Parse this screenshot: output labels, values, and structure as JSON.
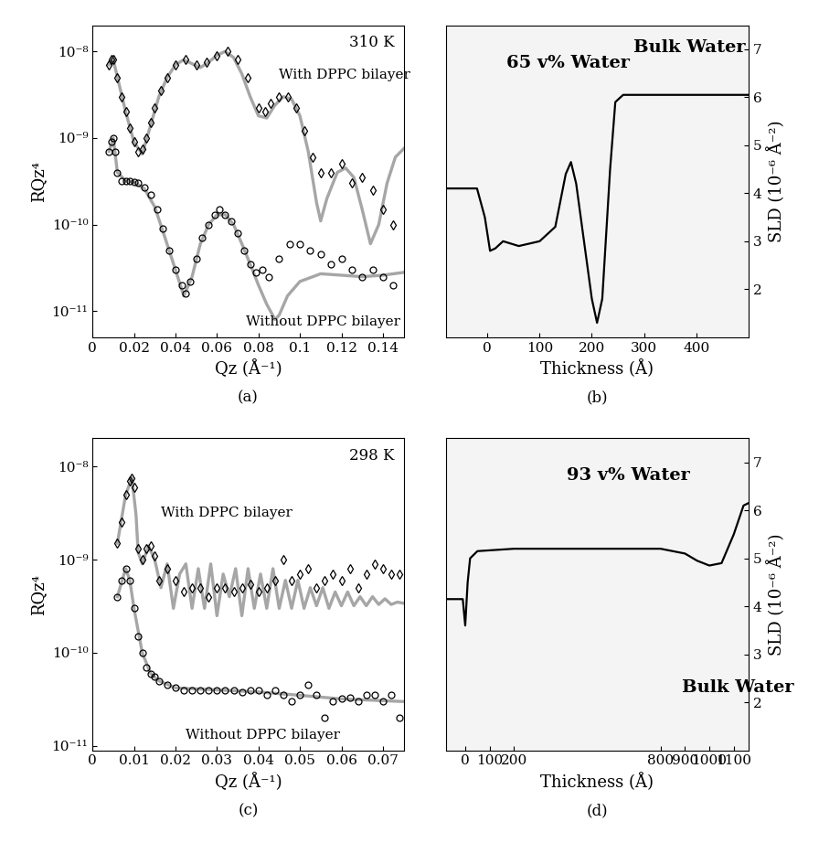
{
  "chart_data": [
    {
      "type": "scatter",
      "title": "(a)",
      "log": "y",
      "x_label": "Qz (Å⁻¹)",
      "y_label": "RQz⁴",
      "xlim": [
        0,
        0.15
      ],
      "ylim": [
        5e-12,
        2e-08
      ],
      "xticks": [
        0,
        0.02,
        0.04,
        0.06,
        0.08,
        0.1,
        0.12,
        0.14
      ],
      "yticks": [
        {
          "value": 1e-11,
          "label": "10⁻¹¹"
        },
        {
          "value": 1e-10,
          "label": "10⁻¹⁰"
        },
        {
          "value": 1e-09,
          "label": "10⁻⁹"
        },
        {
          "value": 1e-08,
          "label": "10⁻⁸"
        }
      ],
      "annotations": [
        {
          "text": "310 K"
        }
      ],
      "series": [
        {
          "name": "With DPPC bilayer",
          "type": "scatter",
          "marker": "diamond",
          "color": "#000000",
          "x": [
            0.008,
            0.009,
            0.01,
            0.012,
            0.014,
            0.016,
            0.018,
            0.02,
            0.022,
            0.024,
            0.026,
            0.028,
            0.03,
            0.033,
            0.036,
            0.04,
            0.045,
            0.05,
            0.055,
            0.06,
            0.065,
            0.07,
            0.075,
            0.08,
            0.083,
            0.086,
            0.09,
            0.094,
            0.098,
            0.102,
            0.106,
            0.11,
            0.115,
            0.12,
            0.125,
            0.13,
            0.135,
            0.14,
            0.145
          ],
          "values": [
            7e-09,
            8e-09,
            8e-09,
            5e-09,
            3e-09,
            2e-09,
            1.3e-09,
            9e-10,
            7e-10,
            7.5e-10,
            1e-09,
            1.5e-09,
            2.2e-09,
            3.5e-09,
            5e-09,
            7e-09,
            8e-09,
            7e-09,
            7.5e-09,
            9e-09,
            1e-08,
            8e-09,
            5e-09,
            2.2e-09,
            2e-09,
            2.5e-09,
            3e-09,
            3e-09,
            2.2e-09,
            1.2e-09,
            6e-10,
            4e-10,
            4e-10,
            5e-10,
            3e-10,
            3.5e-10,
            2.5e-10,
            1.5e-10,
            1e-10
          ]
        },
        {
          "type": "line",
          "line_style": "solid",
          "color": "#a6a6a6",
          "x": [
            0.008,
            0.01,
            0.013,
            0.016,
            0.02,
            0.024,
            0.028,
            0.032,
            0.036,
            0.04,
            0.044,
            0.048,
            0.052,
            0.056,
            0.06,
            0.064,
            0.068,
            0.072,
            0.076,
            0.08,
            0.084,
            0.088,
            0.092,
            0.096,
            0.1,
            0.104,
            0.108,
            0.11,
            0.113,
            0.118,
            0.122,
            0.126,
            0.13,
            0.134,
            0.138,
            0.142,
            0.146,
            0.15
          ],
          "values": [
            7e-09,
            8e-09,
            4e-09,
            2e-09,
            9e-10,
            6.5e-10,
            1.4e-09,
            3e-09,
            5e-09,
            7e-09,
            8e-09,
            7.2e-09,
            6.5e-09,
            7.5e-09,
            9e-09,
            1e-08,
            8.5e-09,
            5.5e-09,
            3e-09,
            1.8e-09,
            1.7e-09,
            2.4e-09,
            3e-09,
            2.8e-09,
            1.8e-09,
            7e-10,
            1.8e-10,
            1.1e-10,
            2e-10,
            4e-10,
            4.5e-10,
            3.5e-10,
            1.5e-10,
            6e-11,
            1e-10,
            3e-10,
            6e-10,
            7.5e-10
          ]
        },
        {
          "name": "Without DPPC bilayer",
          "type": "scatter",
          "marker": "circle",
          "color": "#000000",
          "x": [
            0.008,
            0.009,
            0.01,
            0.011,
            0.012,
            0.014,
            0.016,
            0.018,
            0.02,
            0.022,
            0.025,
            0.028,
            0.031,
            0.034,
            0.037,
            0.04,
            0.043,
            0.045,
            0.047,
            0.05,
            0.053,
            0.056,
            0.059,
            0.061,
            0.064,
            0.067,
            0.07,
            0.073,
            0.076,
            0.079,
            0.082,
            0.085,
            0.09,
            0.095,
            0.1,
            0.105,
            0.11,
            0.115,
            0.12,
            0.125,
            0.13,
            0.135,
            0.14,
            0.145
          ],
          "values": [
            7e-10,
            9e-10,
            1e-09,
            7e-10,
            4e-10,
            3.2e-10,
            3.2e-10,
            3.2e-10,
            3.1e-10,
            3e-10,
            2.7e-10,
            2.2e-10,
            1.5e-10,
            9e-11,
            5e-11,
            3e-11,
            2e-11,
            1.6e-11,
            2.2e-11,
            4e-11,
            7e-11,
            1e-10,
            1.3e-10,
            1.5e-10,
            1.3e-10,
            1.1e-10,
            8e-11,
            5e-11,
            3.5e-11,
            2.8e-11,
            3e-11,
            2.5e-11,
            4e-11,
            6e-11,
            6e-11,
            5e-11,
            4.5e-11,
            3.5e-11,
            4e-11,
            3e-11,
            2.5e-11,
            3e-11,
            2.5e-11,
            2e-11
          ]
        },
        {
          "type": "line",
          "line_style": "solid",
          "color": "#a6a6a6",
          "x": [
            0.008,
            0.01,
            0.012,
            0.016,
            0.02,
            0.025,
            0.03,
            0.035,
            0.04,
            0.044,
            0.048,
            0.052,
            0.056,
            0.06,
            0.064,
            0.068,
            0.072,
            0.076,
            0.08,
            0.084,
            0.088,
            0.09,
            0.094,
            0.1,
            0.11,
            0.12,
            0.13,
            0.14,
            0.15
          ],
          "values": [
            7e-10,
            1e-09,
            4e-10,
            3.2e-10,
            3.1e-10,
            2.6e-10,
            1.6e-10,
            7e-11,
            3e-11,
            1.5e-11,
            2.5e-11,
            6e-11,
            1e-10,
            1.3e-10,
            1.3e-10,
            1e-10,
            6e-11,
            3.5e-11,
            2e-11,
            1.2e-11,
            8e-12,
            9e-12,
            1.5e-11,
            2.2e-11,
            2.7e-11,
            2.6e-11,
            2.5e-11,
            2.6e-11,
            2.8e-11
          ]
        }
      ]
    },
    {
      "type": "line",
      "title": "(b)",
      "x_label": "Thickness (Å)",
      "y_label": "SLD (10⁻⁶ Å⁻²)",
      "xlim": [
        -80,
        500
      ],
      "ylim": [
        1,
        7.5
      ],
      "xticks": [
        0,
        100,
        200,
        300,
        400
      ],
      "yticks": [
        2,
        3,
        4,
        5,
        6,
        7
      ],
      "annotations": [
        {
          "text": "65 v% Water"
        },
        {
          "text": "Bulk Water"
        }
      ],
      "series": [
        {
          "type": "line",
          "line_style": "solid",
          "color": "#000000",
          "x": [
            -80,
            -20,
            -5,
            5,
            15,
            30,
            60,
            100,
            130,
            150,
            160,
            170,
            185,
            200,
            210,
            220,
            235,
            245,
            260,
            500
          ],
          "values": [
            4.1,
            4.1,
            3.5,
            2.8,
            2.85,
            3.0,
            2.9,
            3.0,
            3.3,
            4.4,
            4.65,
            4.2,
            3.0,
            1.8,
            1.3,
            1.8,
            4.5,
            5.9,
            6.05,
            6.05
          ]
        }
      ]
    },
    {
      "type": "scatter",
      "title": "(c)",
      "log": "y",
      "x_label": "Qz (Å⁻¹)",
      "y_label": "RQz⁴",
      "xlim": [
        0,
        0.075
      ],
      "ylim": [
        9e-12,
        2e-08
      ],
      "xticks": [
        0,
        0.01,
        0.02,
        0.03,
        0.04,
        0.05,
        0.06,
        0.07
      ],
      "yticks": [
        {
          "value": 1e-11,
          "label": "10⁻¹¹"
        },
        {
          "value": 1e-10,
          "label": "10⁻¹⁰"
        },
        {
          "value": 1e-09,
          "label": "10⁻⁹"
        },
        {
          "value": 1e-08,
          "label": "10⁻⁸"
        }
      ],
      "annotations": [
        {
          "text": "298 K"
        }
      ],
      "series": [
        {
          "name": "With DPPC bilayer",
          "type": "scatter",
          "marker": "diamond",
          "color": "#000000",
          "x": [
            0.006,
            0.007,
            0.008,
            0.009,
            0.0095,
            0.01,
            0.011,
            0.012,
            0.013,
            0.014,
            0.015,
            0.016,
            0.018,
            0.02,
            0.022,
            0.024,
            0.026,
            0.028,
            0.03,
            0.032,
            0.034,
            0.036,
            0.038,
            0.04,
            0.042,
            0.044,
            0.046,
            0.048,
            0.05,
            0.052,
            0.054,
            0.056,
            0.058,
            0.06,
            0.062,
            0.064,
            0.066,
            0.068,
            0.07,
            0.072,
            0.074
          ],
          "values": [
            1.5e-09,
            2.5e-09,
            5e-09,
            7e-09,
            7.5e-09,
            6e-09,
            1.3e-09,
            1e-09,
            1.3e-09,
            1.4e-09,
            1.1e-09,
            6e-10,
            8e-10,
            6e-10,
            4.5e-10,
            5e-10,
            5e-10,
            4e-10,
            5e-10,
            5e-10,
            4.5e-10,
            5e-10,
            5.5e-10,
            4.5e-10,
            5e-10,
            6e-10,
            1e-09,
            6e-10,
            7e-10,
            8e-10,
            5e-10,
            6e-10,
            7e-10,
            6e-10,
            8e-10,
            5e-10,
            7e-10,
            9e-10,
            8e-10,
            7e-10,
            7e-10
          ]
        },
        {
          "type": "line",
          "line_style": "solid",
          "color": "#a6a6a6",
          "x": [
            0.006,
            0.008,
            0.0095,
            0.0105,
            0.011,
            0.012,
            0.0135,
            0.015,
            0.0165,
            0.018,
            0.0195,
            0.021,
            0.0225,
            0.024,
            0.0255,
            0.027,
            0.0285,
            0.03,
            0.0315,
            0.033,
            0.0345,
            0.036,
            0.0375,
            0.039,
            0.0405,
            0.042,
            0.0435,
            0.045,
            0.0465,
            0.048,
            0.0495,
            0.051,
            0.0525,
            0.054,
            0.0555,
            0.057,
            0.0585,
            0.06,
            0.0615,
            0.063,
            0.0645,
            0.066,
            0.0675,
            0.069,
            0.0705,
            0.072,
            0.0735,
            0.075
          ],
          "values": [
            1.5e-09,
            5e-09,
            7.5e-09,
            3e-09,
            1.2e-09,
            9e-10,
            1.4e-09,
            1e-09,
            5e-10,
            9e-10,
            3e-10,
            7e-10,
            9e-10,
            3e-10,
            8e-10,
            3e-10,
            9e-10,
            2.5e-10,
            7e-10,
            4e-10,
            8e-10,
            2.5e-10,
            8e-10,
            3e-10,
            7e-10,
            3e-10,
            8e-10,
            3e-10,
            6e-10,
            3e-10,
            6e-10,
            3e-10,
            5e-10,
            3.2e-10,
            5e-10,
            3e-10,
            4.5e-10,
            3.2e-10,
            4.5e-10,
            3.2e-10,
            4e-10,
            3.2e-10,
            4e-10,
            3.3e-10,
            3.8e-10,
            3.3e-10,
            3.5e-10,
            3.4e-10
          ]
        },
        {
          "name": "Without DPPC bilayer",
          "type": "scatter",
          "marker": "circle",
          "color": "#000000",
          "x": [
            0.006,
            0.007,
            0.008,
            0.009,
            0.01,
            0.011,
            0.012,
            0.013,
            0.014,
            0.015,
            0.016,
            0.018,
            0.02,
            0.022,
            0.024,
            0.026,
            0.028,
            0.03,
            0.032,
            0.034,
            0.036,
            0.038,
            0.04,
            0.042,
            0.044,
            0.046,
            0.048,
            0.05,
            0.052,
            0.054,
            0.056,
            0.058,
            0.06,
            0.062,
            0.064,
            0.066,
            0.068,
            0.07,
            0.072,
            0.074
          ],
          "values": [
            4e-10,
            6e-10,
            8e-10,
            6e-10,
            3e-10,
            1.5e-10,
            1e-10,
            7e-11,
            6e-11,
            5.5e-11,
            5e-11,
            4.5e-11,
            4.2e-11,
            4e-11,
            4e-11,
            4e-11,
            4e-11,
            4e-11,
            4e-11,
            4e-11,
            3.8e-11,
            4e-11,
            4e-11,
            3.5e-11,
            4e-11,
            3.5e-11,
            3e-11,
            3.5e-11,
            4.5e-11,
            3.5e-11,
            2e-11,
            3e-11,
            3.2e-11,
            3.3e-11,
            3e-11,
            3.5e-11,
            3.5e-11,
            3e-11,
            3.5e-11,
            2e-11
          ]
        },
        {
          "type": "line",
          "line_style": "solid",
          "color": "#a6a6a6",
          "x": [
            0.006,
            0.008,
            0.009,
            0.01,
            0.012,
            0.014,
            0.016,
            0.02,
            0.03,
            0.04,
            0.05,
            0.06,
            0.075
          ],
          "values": [
            4e-10,
            8e-10,
            6e-10,
            3e-10,
            1e-10,
            6e-11,
            5e-11,
            4.2e-11,
            4e-11,
            3.8e-11,
            3.5e-11,
            3.2e-11,
            3e-11
          ]
        }
      ]
    },
    {
      "type": "line",
      "title": "(d)",
      "x_label": "Thickness (Å)",
      "y_label": "SLD (10⁻⁶ Å⁻²)",
      "xlim": [
        -80,
        1160
      ],
      "ylim": [
        1,
        7.5
      ],
      "xticks": [
        0,
        100,
        200,
        800,
        900,
        1000,
        1100
      ],
      "yticks": [
        2,
        3,
        4,
        5,
        6,
        7
      ],
      "annotations": [
        {
          "text": "93 v% Water"
        },
        {
          "text": "Bulk Water"
        }
      ],
      "series": [
        {
          "type": "line",
          "line_style": "solid",
          "color": "#000000",
          "x": [
            -80,
            -10,
            0,
            10,
            20,
            50,
            200,
            800,
            900,
            950,
            1000,
            1050,
            1100,
            1140,
            1160
          ],
          "values": [
            4.15,
            4.15,
            3.6,
            4.5,
            5.0,
            5.15,
            5.2,
            5.2,
            5.1,
            4.95,
            4.85,
            4.9,
            5.5,
            6.1,
            6.15
          ]
        }
      ]
    }
  ]
}
